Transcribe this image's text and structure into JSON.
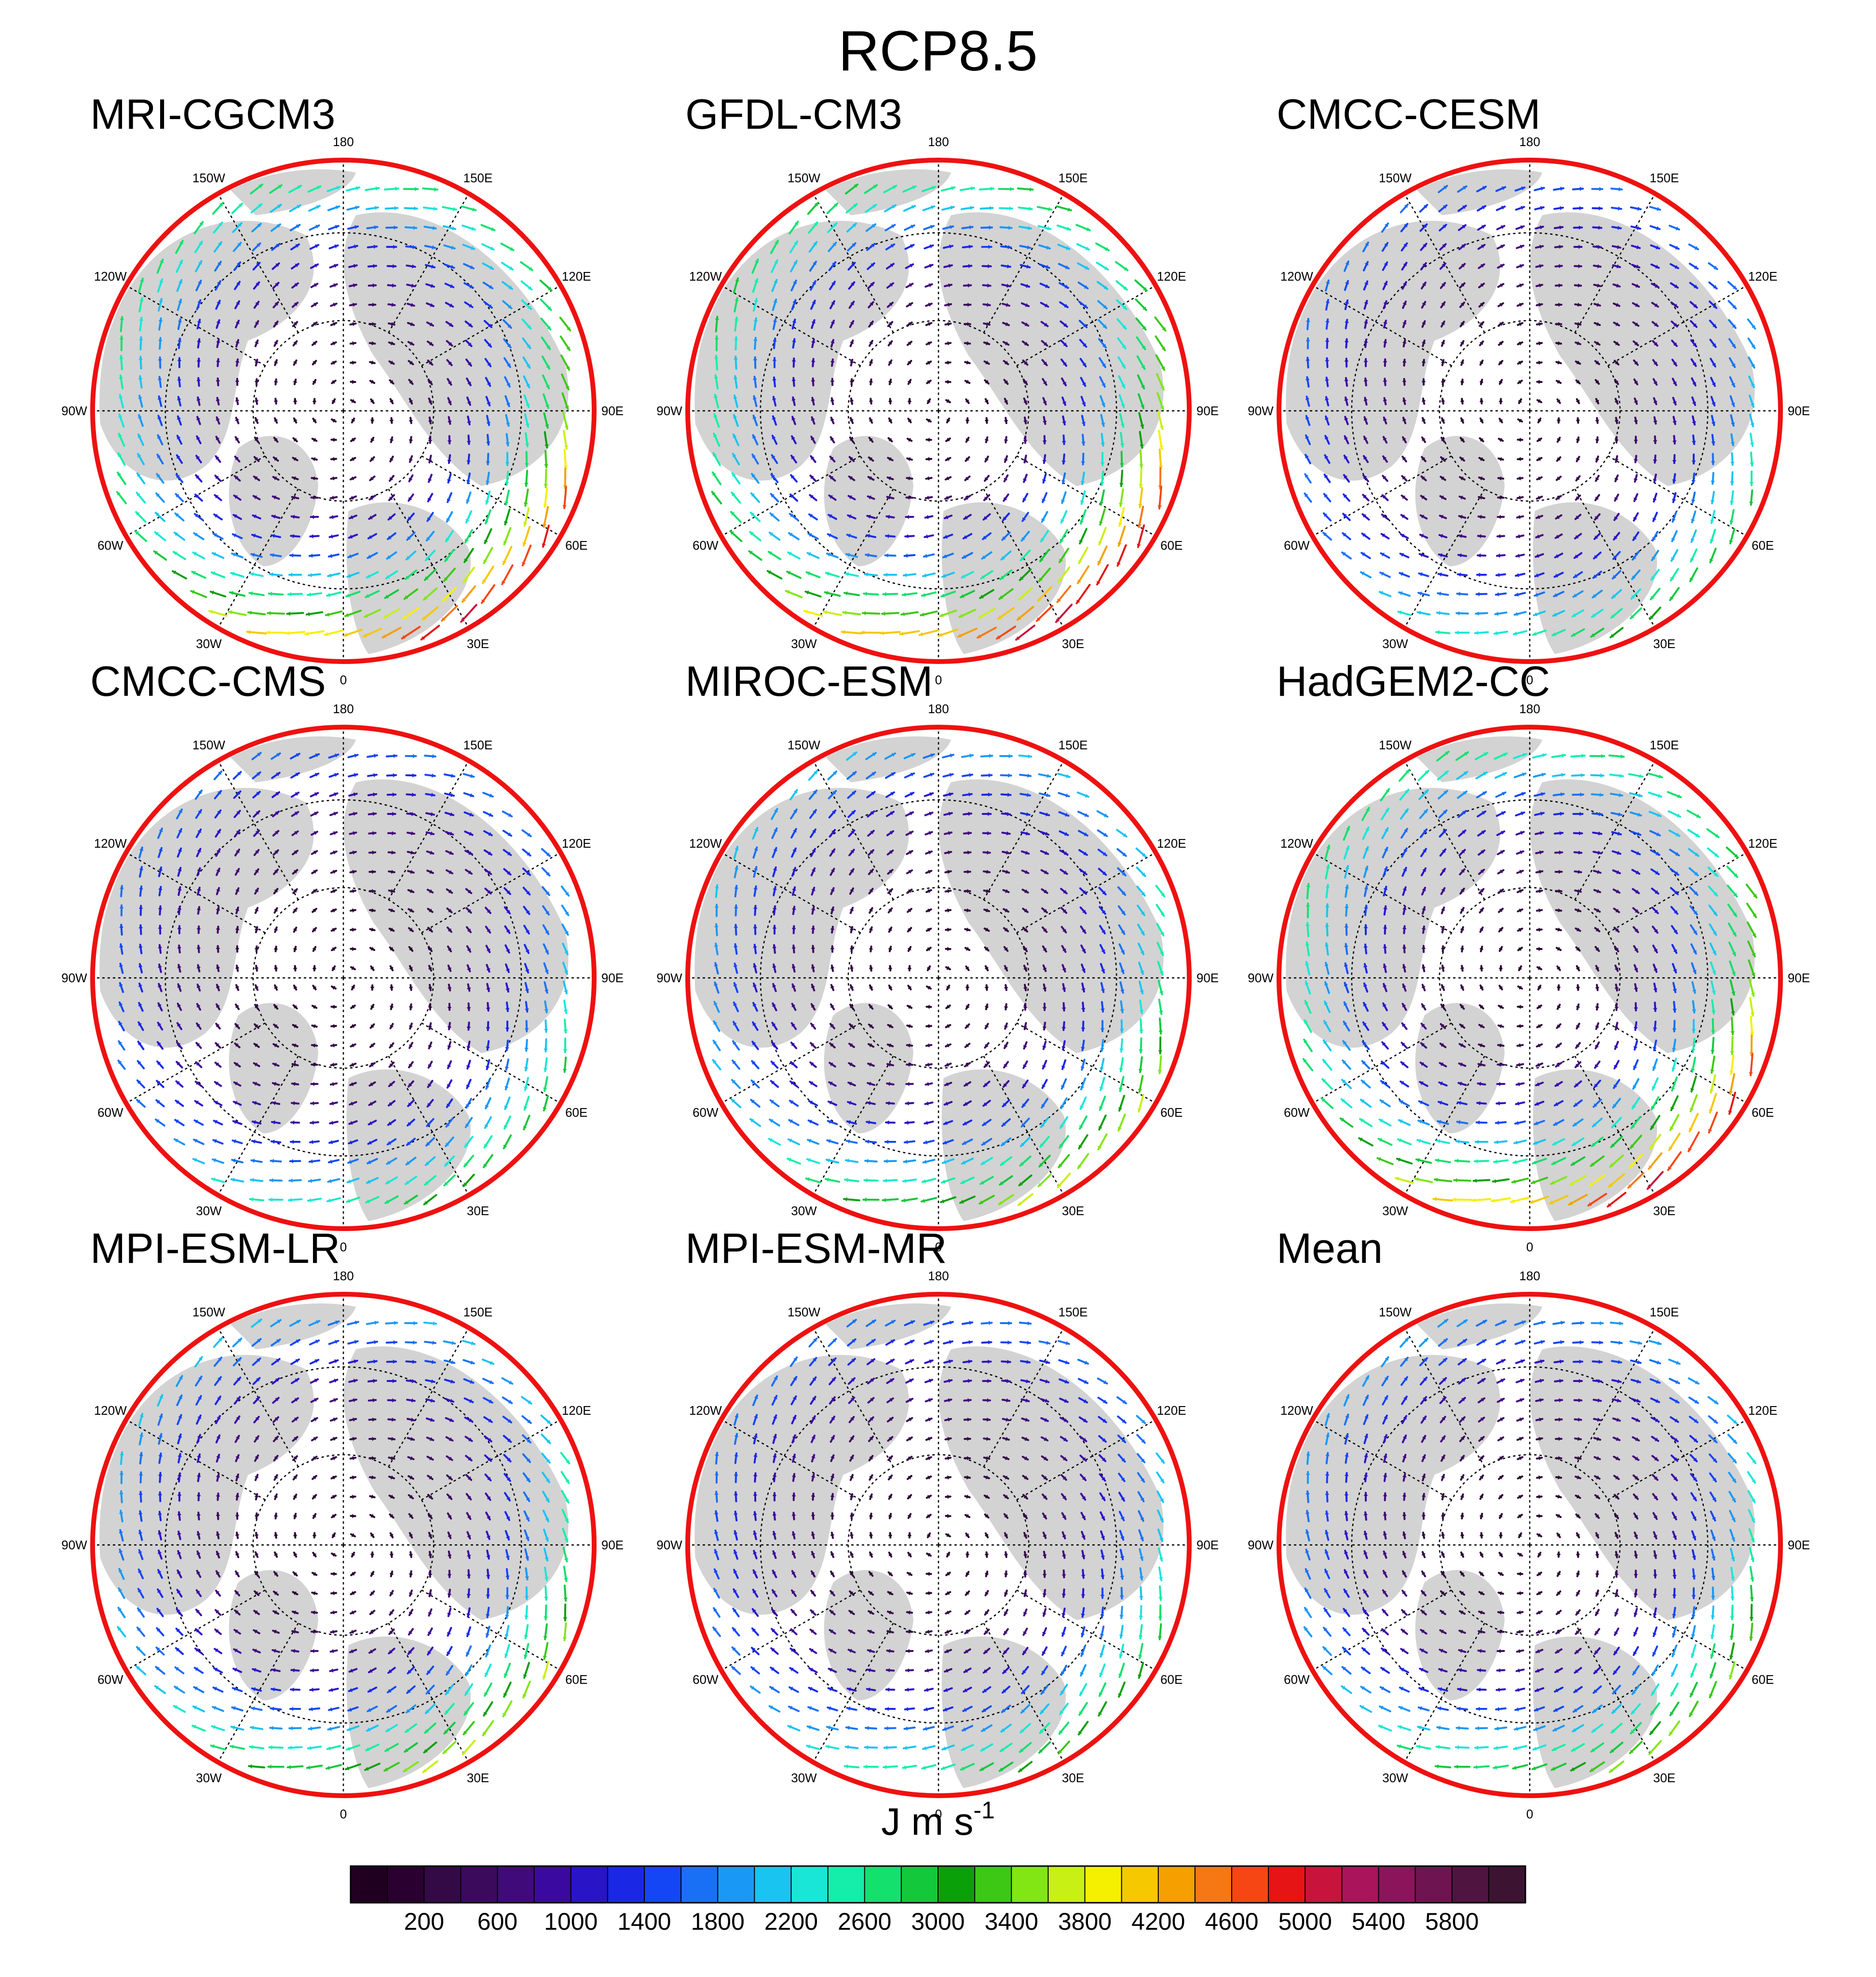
{
  "figure": {
    "title": "RCP8.5"
  },
  "colors": {
    "land": "#d3d3d3",
    "ocean": "#ffffff",
    "panel_border": "#ee1111",
    "grid": "#000000"
  },
  "chart_data": {
    "type": "vector-map",
    "projection": "north-polar-stereographic",
    "title": "RCP8.5",
    "units": {
      "base": "J m s",
      "exponent": "-1"
    },
    "grid": true,
    "longitude_labels": [
      "180",
      "150E",
      "120E",
      "90E",
      "60E",
      "30E",
      "0",
      "30W",
      "60W",
      "90W",
      "120W",
      "150W"
    ],
    "panels": [
      {
        "title": "MRI-CGCM3",
        "peak_magnitude": 5800
      },
      {
        "title": "GFDL-CM3",
        "peak_magnitude": 6000
      },
      {
        "title": "CMCC-CESM",
        "peak_magnitude": 3600
      },
      {
        "title": "CMCC-CMS",
        "peak_magnitude": 3600
      },
      {
        "title": "MIROC-ESM",
        "peak_magnitude": 4400
      },
      {
        "title": "HadGEM2-CC",
        "peak_magnitude": 5800
      },
      {
        "title": "MPI-ESM-LR",
        "peak_magnitude": 4400
      },
      {
        "title": "MPI-ESM-MR",
        "peak_magnitude": 3800
      },
      {
        "title": "Mean",
        "peak_magnitude": 4200
      }
    ],
    "colorbar": {
      "min": 0,
      "max": 6200,
      "step": 200,
      "tick_labels": [
        "200",
        "600",
        "1000",
        "1400",
        "1800",
        "2200",
        "2600",
        "3000",
        "3400",
        "3800",
        "4200",
        "4600",
        "5000",
        "5400",
        "5800"
      ],
      "colors": [
        "#200020",
        "#2a0030",
        "#330a45",
        "#3b0a5c",
        "#410a7a",
        "#3a0aa0",
        "#2a14c8",
        "#1a28e6",
        "#1446f5",
        "#1a70f5",
        "#1a98f5",
        "#1ac4f0",
        "#1ae6d8",
        "#14eeaa",
        "#14e06e",
        "#14c83c",
        "#0aa00a",
        "#3cc814",
        "#82e614",
        "#c8f014",
        "#f5f000",
        "#f5c800",
        "#f5a000",
        "#f57814",
        "#f54614",
        "#e61414",
        "#c8143c",
        "#aa145a",
        "#8c145a",
        "#6e1450",
        "#501440",
        "#3c1432"
      ]
    }
  }
}
